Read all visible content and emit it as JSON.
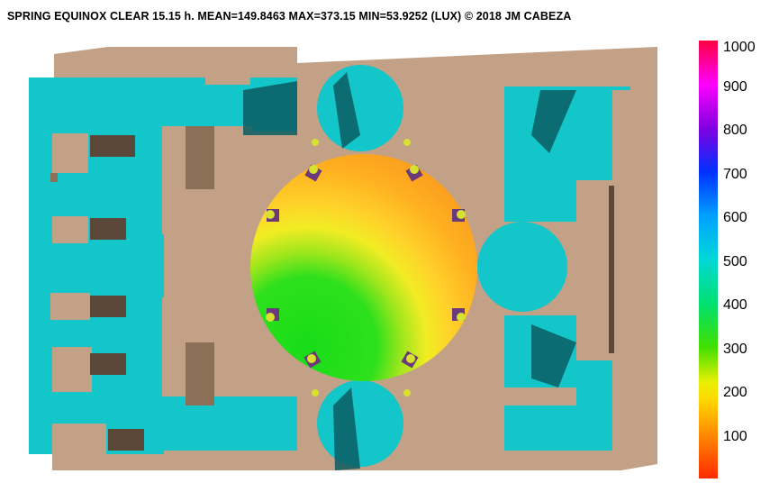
{
  "header": {
    "title": "SPRING EQUINOX CLEAR 15.15 h.   MEAN=149.8463  MAX=373.15  MIN=53.9252 (LUX)  © 2018 JM CABEZA"
  },
  "colors": {
    "floor": "#12c6c9",
    "wall_top": "#c2a186",
    "wall_shade": "#8c6f57",
    "wall_dark": "#5c4838",
    "shadow": "#0a5c62",
    "dome_high": "#f79a1f",
    "dome_mid": "#ffe23a",
    "dome_low": "#20e020"
  },
  "legend": {
    "ticks": [
      {
        "label": "1000",
        "value": 1000
      },
      {
        "label": "900",
        "value": 900
      },
      {
        "label": "800",
        "value": 800
      },
      {
        "label": "700",
        "value": 700
      },
      {
        "label": "600",
        "value": 600
      },
      {
        "label": "500",
        "value": 500
      },
      {
        "label": "400",
        "value": 400
      },
      {
        "label": "300",
        "value": 300
      },
      {
        "label": "200",
        "value": 200
      },
      {
        "label": "100",
        "value": 100
      }
    ],
    "min_value": 0,
    "max_value": 1000
  }
}
